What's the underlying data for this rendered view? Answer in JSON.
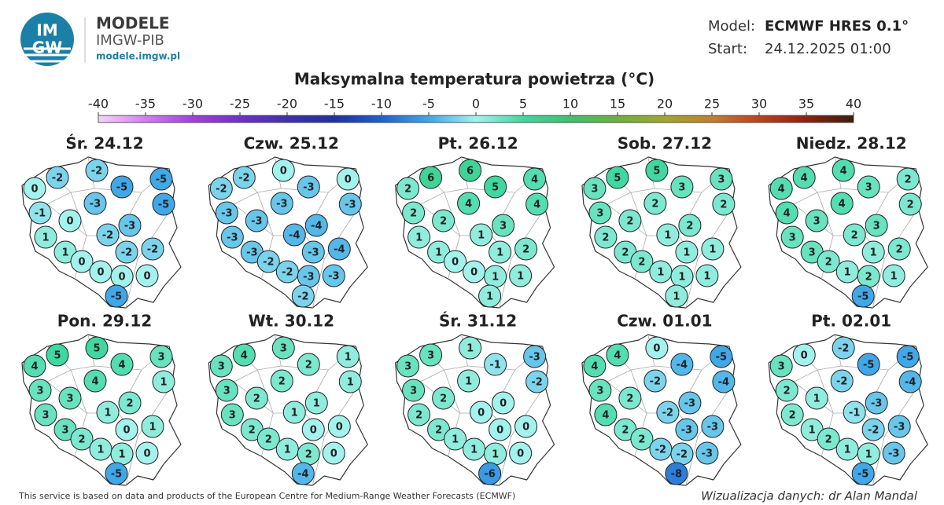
{
  "header": {
    "logo_lines": [
      "IM",
      "GW"
    ],
    "brand": "MODELE",
    "org": "IMGW-PIB",
    "url": "modele.imgw.pl"
  },
  "model": {
    "model_label": "Model:",
    "model_name": "ECMWF HRES 0.1°",
    "start_label": "Start:",
    "start_value": "24.12.2025 01:00"
  },
  "title": "Maksymalna temperatura powietrza (°C)",
  "colorbar": {
    "ticks": [
      -40,
      -35,
      -30,
      -25,
      -20,
      -15,
      -10,
      -5,
      0,
      5,
      10,
      15,
      20,
      25,
      30,
      35,
      40
    ],
    "colors": [
      "#f6d4f6",
      "#d080f0",
      "#a040e0",
      "#7030d0",
      "#4030b0",
      "#2030a0",
      "#2060d0",
      "#40a8e8",
      "#a4f2ee",
      "#40d8a0",
      "#40c070",
      "#70b040",
      "#a0a830",
      "#c08030",
      "#c04020",
      "#902010",
      "#3a2010"
    ]
  },
  "maps": [
    {
      "label": "Śr. 24.12",
      "values": [
        0,
        -2,
        -2,
        -5,
        -5,
        -3,
        -5,
        -1,
        0,
        -3,
        1,
        -2,
        1,
        -2,
        -2,
        0,
        0,
        0,
        0,
        -5
      ]
    },
    {
      "label": "Czw. 25.12",
      "values": [
        -2,
        -2,
        0,
        -3,
        0,
        -3,
        -3,
        -3,
        -3,
        -4,
        -3,
        -4,
        -3,
        -3,
        -4,
        -2,
        -2,
        -3,
        -3,
        -2
      ]
    },
    {
      "label": "Pt. 26.12",
      "values": [
        2,
        6,
        6,
        5,
        4,
        4,
        4,
        2,
        2,
        3,
        1,
        1,
        1,
        1,
        2,
        0,
        0,
        1,
        1,
        1
      ]
    },
    {
      "label": "Sob. 27.12",
      "values": [
        3,
        5,
        5,
        3,
        3,
        2,
        2,
        3,
        2,
        2,
        2,
        1,
        2,
        1,
        1,
        2,
        1,
        1,
        1,
        1
      ]
    },
    {
      "label": "Niedz. 28.12",
      "values": [
        4,
        4,
        4,
        3,
        2,
        4,
        2,
        4,
        3,
        3,
        3,
        2,
        3,
        1,
        2,
        2,
        1,
        2,
        1,
        -5
      ]
    },
    {
      "label": "Pon. 29.12",
      "values": [
        4,
        5,
        5,
        4,
        3,
        4,
        1,
        3,
        3,
        2,
        3,
        1,
        3,
        0,
        1,
        2,
        1,
        1,
        0,
        -5
      ]
    },
    {
      "label": "Wt. 30.12",
      "values": [
        3,
        4,
        3,
        2,
        1,
        2,
        1,
        3,
        2,
        1,
        3,
        1,
        2,
        0,
        0,
        2,
        1,
        2,
        0,
        -4
      ]
    },
    {
      "label": "Śr. 31.12",
      "values": [
        3,
        3,
        1,
        -1,
        -3,
        1,
        -2,
        3,
        2,
        0,
        2,
        0,
        2,
        0,
        0,
        1,
        1,
        1,
        0,
        -6
      ]
    },
    {
      "label": "Czw. 01.01",
      "values": [
        4,
        4,
        0,
        -4,
        -5,
        -2,
        -4,
        3,
        2,
        -3,
        4,
        -2,
        2,
        -3,
        -3,
        2,
        -2,
        -2,
        -3,
        -8
      ]
    },
    {
      "label": "Pt. 02.01",
      "values": [
        3,
        0,
        -2,
        -5,
        -5,
        -2,
        -4,
        2,
        1,
        -3,
        2,
        -1,
        1,
        -2,
        -3,
        2,
        1,
        1,
        -3,
        -5
      ]
    }
  ],
  "footer": {
    "source": "This service is based on data and products of the European Centre for Medium-Range Weather Forecasts (ECMWF)",
    "credit": "Wizualizacja danych: dr Alan Mandal"
  }
}
